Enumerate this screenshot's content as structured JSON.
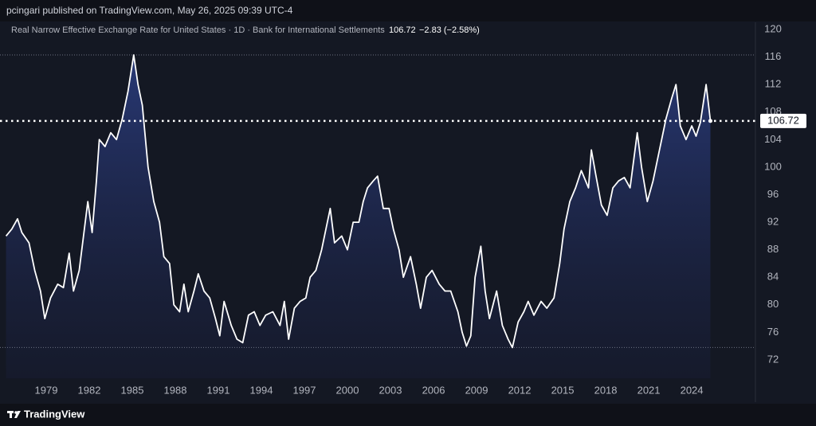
{
  "header": {
    "publisher": "pcingari published on TradingView.com, May 26, 2025 09:39 UTC-4"
  },
  "footer": {
    "brand": "TradingView"
  },
  "chart_data": {
    "type": "line",
    "title": "Real Narrow Effective Exchange Rate for United States · 1D · Bank for International Settlements",
    "change": "−2.83 (−2.58%)",
    "x": [
      1976.2,
      1976.6,
      1977.0,
      1977.3,
      1977.8,
      1978.2,
      1978.6,
      1978.9,
      1979.3,
      1979.8,
      1980.2,
      1980.6,
      1980.9,
      1981.3,
      1981.6,
      1981.9,
      1982.2,
      1982.5,
      1982.7,
      1983.1,
      1983.5,
      1983.9,
      1984.3,
      1984.7,
      1985.1,
      1985.4,
      1985.7,
      1986.1,
      1986.5,
      1986.9,
      1987.2,
      1987.6,
      1987.9,
      1988.3,
      1988.6,
      1988.9,
      1989.3,
      1989.6,
      1990.0,
      1990.4,
      1990.8,
      1991.1,
      1991.4,
      1991.9,
      1992.3,
      1992.7,
      1993.1,
      1993.5,
      1993.9,
      1994.3,
      1994.8,
      1995.3,
      1995.6,
      1995.9,
      1996.3,
      1996.7,
      1997.1,
      1997.4,
      1997.8,
      1998.2,
      1998.6,
      1998.8,
      1999.1,
      1999.6,
      2000.0,
      2000.4,
      2000.8,
      2001.1,
      2001.4,
      2001.8,
      2002.1,
      2002.5,
      2002.9,
      2003.2,
      2003.6,
      2003.9,
      2004.4,
      2004.8,
      2005.1,
      2005.5,
      2005.9,
      2006.4,
      2006.8,
      2007.2,
      2007.7,
      2008.0,
      2008.3,
      2008.6,
      2008.9,
      2009.3,
      2009.6,
      2009.9,
      2010.4,
      2010.8,
      2011.2,
      2011.5,
      2011.9,
      2012.3,
      2012.6,
      2013.0,
      2013.5,
      2013.9,
      2014.4,
      2014.8,
      2015.1,
      2015.5,
      2015.9,
      2016.3,
      2016.8,
      2017.0,
      2017.3,
      2017.7,
      2018.1,
      2018.5,
      2018.9,
      2019.3,
      2019.7,
      2020.2,
      2020.5,
      2020.9,
      2021.3,
      2021.7,
      2022.2,
      2022.6,
      2022.9,
      2023.2,
      2023.6,
      2024.0,
      2024.3,
      2024.6,
      2025.0,
      2025.3
    ],
    "series": [
      {
        "name": "Real Narrow Effective Exchange Rate for United States",
        "color": "#ffffff",
        "values": [
          90,
          91,
          92.5,
          90.5,
          89,
          85,
          82,
          78,
          81,
          83,
          82.5,
          87.5,
          82,
          85,
          90,
          95,
          90.5,
          98,
          104,
          103,
          105,
          104,
          107,
          111,
          116.3,
          112,
          109,
          100,
          95,
          92,
          87,
          86,
          80,
          79,
          83,
          79,
          82,
          84.5,
          82,
          81,
          78,
          75.5,
          80.5,
          77,
          75,
          74.5,
          78.5,
          79,
          77,
          78.5,
          79,
          77,
          80.5,
          75,
          79.5,
          80.5,
          81,
          84,
          85,
          88,
          92,
          94,
          89,
          90,
          88,
          92,
          92,
          95,
          97,
          98,
          98.7,
          94,
          94,
          91,
          88,
          84,
          87,
          83,
          79.5,
          84,
          85,
          83,
          82,
          82,
          79,
          76,
          74,
          75.5,
          84,
          88.5,
          82,
          78,
          82,
          77,
          75,
          73.8,
          77.5,
          79,
          80.5,
          78.5,
          80.5,
          79.5,
          81,
          86,
          91,
          95,
          97,
          99.5,
          97,
          102.5,
          99,
          94.5,
          93,
          97,
          98,
          98.5,
          97,
          105,
          100,
          95,
          98,
          102,
          107,
          110,
          112,
          106,
          104,
          106,
          104.5,
          106.5,
          112,
          106.72
        ]
      }
    ],
    "xlim": [
      1975.78,
      2028.44
    ],
    "xticks": [
      1979,
      1982,
      1985,
      1988,
      1991,
      1994,
      1997,
      2000,
      2003,
      2006,
      2009,
      2012,
      2015,
      2018,
      2021,
      2024
    ],
    "ylim": [
      69.3,
      121.0
    ],
    "yticks": [
      72,
      76,
      80,
      84,
      88,
      92,
      96,
      100,
      104,
      108,
      112,
      116,
      120
    ],
    "grid": false
  }
}
